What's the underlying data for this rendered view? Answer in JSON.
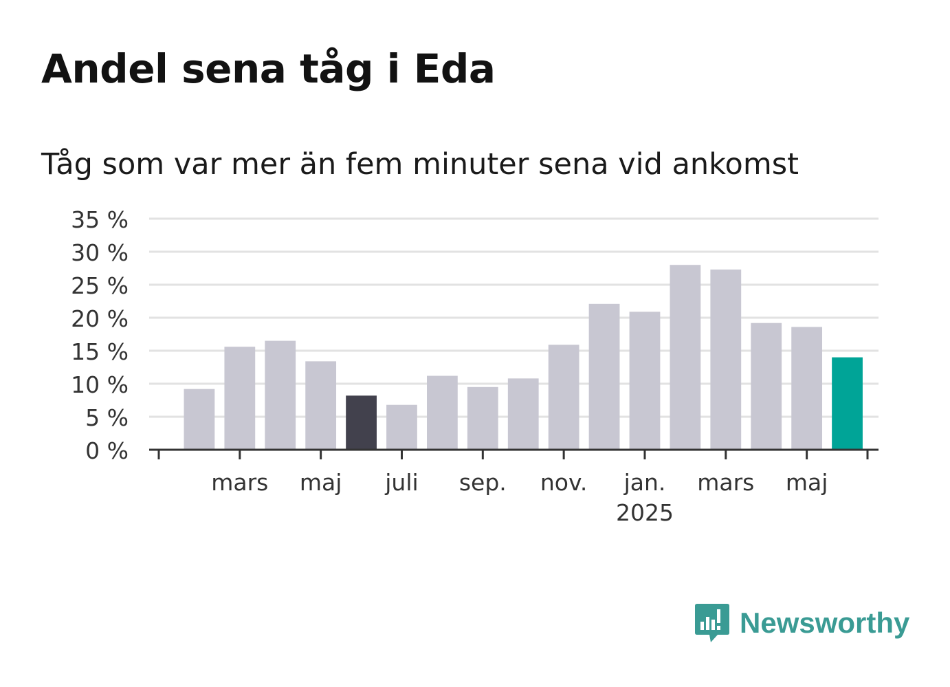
{
  "header": {
    "title": "Andel sena tåg i Eda",
    "subtitle": "Tåg som var mer än fem minuter sena vid ankomst"
  },
  "brand": {
    "name": "Newsworthy",
    "icon": "newsworthy-logo-icon",
    "color": "#3a9b94"
  },
  "chart_data": {
    "type": "bar",
    "categories": [
      "",
      "mars",
      "",
      "maj",
      "",
      "juli",
      "",
      "sep.",
      "",
      "nov.",
      "",
      "jan.",
      "",
      "mars",
      "",
      "maj",
      ""
    ],
    "values": [
      9.2,
      15.6,
      16.5,
      13.4,
      8.2,
      6.8,
      11.2,
      9.5,
      10.8,
      15.9,
      22.1,
      20.9,
      28.0,
      27.3,
      19.2,
      18.6,
      14.0
    ],
    "tick_labels": [
      "mars",
      "maj",
      "juli",
      "sep.",
      "nov.",
      "jan.",
      "mars",
      "maj"
    ],
    "year_label": "2025",
    "y_ticks": [
      "0 %",
      "5 %",
      "10 %",
      "15 %",
      "20 %",
      "25 %",
      "30 %",
      "35 %"
    ],
    "ylim": [
      0,
      35
    ],
    "grid": true,
    "colors": {
      "default": "#c8c7d2",
      "highlight_dark": "#42414d",
      "highlight_latest": "#00a497",
      "grid": "#e2e2e2",
      "axis": "#333333"
    },
    "highlight_dark_index": 4,
    "highlight_latest_index": 16
  }
}
